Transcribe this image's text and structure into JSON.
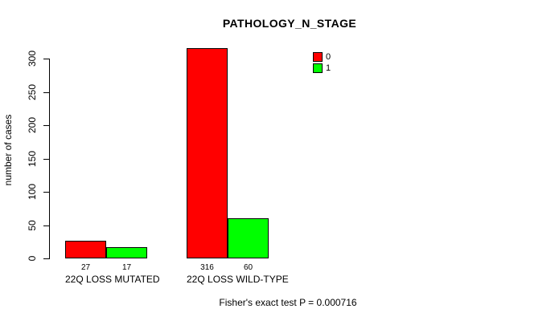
{
  "chart_data": {
    "type": "bar",
    "title": "PATHOLOGY_N_STAGE",
    "ylabel": "number of cases",
    "xlabel": "",
    "categories": [
      "22Q LOSS MUTATED",
      "22Q LOSS WILD-TYPE"
    ],
    "series": [
      {
        "name": "0",
        "color": "#ff0000",
        "values": [
          27,
          316
        ]
      },
      {
        "name": "1",
        "color": "#00ff00",
        "values": [
          17,
          60
        ]
      }
    ],
    "ylim": [
      0,
      300
    ],
    "yticks": [
      0,
      50,
      100,
      150,
      200,
      250,
      300
    ],
    "bar_value_labels": [
      [
        "27",
        "17"
      ],
      [
        "316",
        "60"
      ]
    ],
    "legend": {
      "position": "top-right",
      "entries": [
        {
          "label": "0",
          "color": "#ff0000"
        },
        {
          "label": "1",
          "color": "#00ff00"
        }
      ]
    },
    "annotation": "Fisher's exact test P = 0.000716",
    "grid": false,
    "background": "#ffffff",
    "bar_border_color": "#000000"
  }
}
